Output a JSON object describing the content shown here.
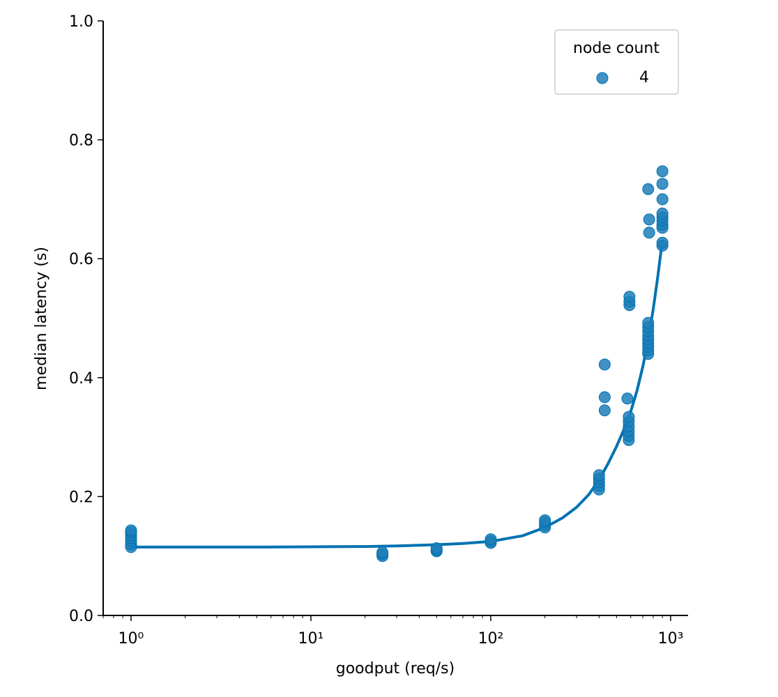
{
  "chart_data": {
    "type": "scatter",
    "xlabel": "goodput (req/s)",
    "ylabel": "median latency (s)",
    "xscale": "log",
    "xlim": [
      0.7,
      1250
    ],
    "ylim": [
      0,
      1.0
    ],
    "x_ticks": [
      1,
      10,
      100,
      1000
    ],
    "x_tick_labels": [
      "10⁰",
      "10¹",
      "10²",
      "10³"
    ],
    "y_ticks": [
      0.0,
      0.2,
      0.4,
      0.6,
      0.8,
      1.0
    ],
    "y_tick_labels": [
      "0.0",
      "0.2",
      "0.4",
      "0.6",
      "0.8",
      "1.0"
    ],
    "legend": {
      "title": "node count",
      "placement": "top-right",
      "entries": [
        {
          "label": "4",
          "color": "#1f7fb8"
        }
      ]
    },
    "color": "#0072b2",
    "series": [
      {
        "name": "4",
        "points": [
          [
            1,
            0.115
          ],
          [
            1,
            0.12
          ],
          [
            1,
            0.125
          ],
          [
            1,
            0.13
          ],
          [
            1,
            0.135
          ],
          [
            1,
            0.14
          ],
          [
            1,
            0.143
          ],
          [
            25,
            0.1
          ],
          [
            25,
            0.103
          ],
          [
            25,
            0.106
          ],
          [
            50,
            0.108
          ],
          [
            50,
            0.11
          ],
          [
            50,
            0.113
          ],
          [
            100,
            0.122
          ],
          [
            100,
            0.125
          ],
          [
            100,
            0.128
          ],
          [
            200,
            0.148
          ],
          [
            200,
            0.152
          ],
          [
            200,
            0.157
          ],
          [
            200,
            0.16
          ],
          [
            400,
            0.212
          ],
          [
            400,
            0.218
          ],
          [
            400,
            0.224
          ],
          [
            400,
            0.23
          ],
          [
            400,
            0.236
          ],
          [
            430,
            0.345
          ],
          [
            430,
            0.367
          ],
          [
            430,
            0.422
          ],
          [
            575,
            0.365
          ],
          [
            585,
            0.295
          ],
          [
            585,
            0.302
          ],
          [
            585,
            0.31
          ],
          [
            585,
            0.318
          ],
          [
            585,
            0.326
          ],
          [
            585,
            0.334
          ],
          [
            590,
            0.522
          ],
          [
            590,
            0.528
          ],
          [
            590,
            0.536
          ],
          [
            750,
            0.44
          ],
          [
            750,
            0.446
          ],
          [
            750,
            0.452
          ],
          [
            750,
            0.458
          ],
          [
            750,
            0.464
          ],
          [
            750,
            0.47
          ],
          [
            750,
            0.478
          ],
          [
            750,
            0.485
          ],
          [
            750,
            0.492
          ],
          [
            760,
            0.644
          ],
          [
            760,
            0.666
          ],
          [
            750,
            0.717
          ],
          [
            900,
            0.622
          ],
          [
            900,
            0.627
          ],
          [
            900,
            0.652
          ],
          [
            900,
            0.657
          ],
          [
            900,
            0.664
          ],
          [
            900,
            0.67
          ],
          [
            900,
            0.676
          ],
          [
            900,
            0.7
          ],
          [
            900,
            0.726
          ],
          [
            900,
            0.747
          ]
        ]
      }
    ],
    "fit_curve": {
      "x": [
        1,
        2,
        5,
        10,
        20,
        30,
        50,
        70,
        100,
        150,
        200,
        250,
        300,
        350,
        400,
        450,
        500,
        550,
        600,
        650,
        700,
        750,
        800,
        850,
        900
      ],
      "y": [
        0.115,
        0.115,
        0.115,
        0.1155,
        0.116,
        0.117,
        0.119,
        0.121,
        0.1245,
        0.134,
        0.148,
        0.164,
        0.182,
        0.203,
        0.228,
        0.256,
        0.284,
        0.313,
        0.343,
        0.378,
        0.418,
        0.463,
        0.515,
        0.572,
        0.632
      ]
    }
  }
}
